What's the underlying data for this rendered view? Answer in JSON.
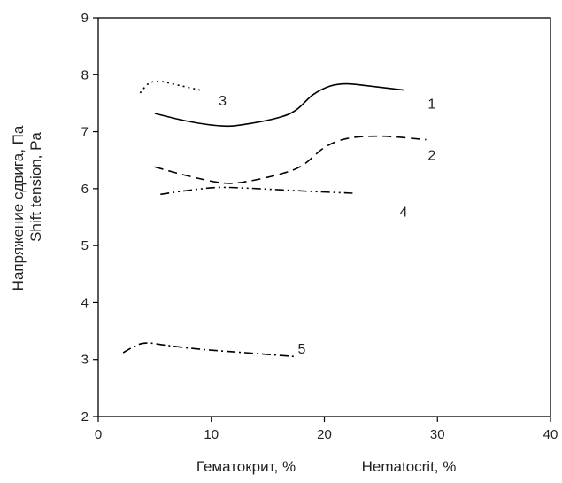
{
  "chart_data": {
    "type": "line",
    "title": "",
    "xlabel_ru": "Гематокрит, %",
    "xlabel_en": "Hematocrit, %",
    "ylabel_ru": "Напряжение сдвига, Па",
    "ylabel_en": "Shift tension, Pa",
    "xlim": [
      0,
      40
    ],
    "ylim": [
      2,
      9
    ],
    "xticks": [
      0,
      10,
      20,
      30,
      40
    ],
    "yticks": [
      2,
      3,
      4,
      5,
      6,
      7,
      8,
      9
    ],
    "grid": false,
    "series": [
      {
        "name": "1",
        "dash": "solid",
        "label_at": [
          29.5,
          7.5
        ],
        "x": [
          5,
          8,
          11,
          13,
          16,
          17.5,
          19,
          20.5,
          22,
          24,
          27
        ],
        "y": [
          7.32,
          7.18,
          7.1,
          7.13,
          7.25,
          7.38,
          7.65,
          7.8,
          7.84,
          7.8,
          7.73
        ]
      },
      {
        "name": "2",
        "dash": "longdash",
        "label_at": [
          29.5,
          6.6
        ],
        "x": [
          5,
          8,
          11,
          13,
          16,
          18,
          20,
          22,
          25,
          29
        ],
        "y": [
          6.38,
          6.22,
          6.1,
          6.12,
          6.25,
          6.4,
          6.72,
          6.88,
          6.92,
          6.86
        ]
      },
      {
        "name": "3",
        "dash": "dot",
        "label_at": [
          11,
          7.55
        ],
        "x": [
          3.7,
          4.5,
          5.5,
          7,
          9
        ],
        "y": [
          7.68,
          7.85,
          7.88,
          7.82,
          7.73
        ]
      },
      {
        "name": "4",
        "dash": "dashdotdot",
        "label_at": [
          27,
          5.6
        ],
        "x": [
          5.5,
          8,
          10.5,
          13,
          16,
          19,
          22.5
        ],
        "y": [
          5.9,
          5.97,
          6.02,
          6.01,
          5.98,
          5.95,
          5.92
        ]
      },
      {
        "name": "5",
        "dash": "dashdot",
        "label_at": [
          18,
          3.2
        ],
        "x": [
          2.2,
          3.5,
          4.5,
          6,
          9,
          13,
          17.5
        ],
        "y": [
          3.12,
          3.26,
          3.29,
          3.25,
          3.18,
          3.12,
          3.05
        ]
      }
    ]
  }
}
